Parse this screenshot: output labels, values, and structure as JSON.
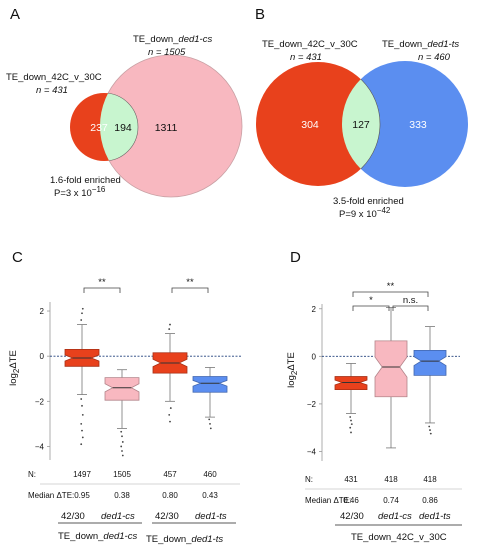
{
  "panels": {
    "A": {
      "label": "A",
      "left_set": {
        "name_prefix": "TE_down_42C_v_30C",
        "name_italic": "",
        "n_text": "n = 431",
        "n": 431,
        "only": 237
      },
      "right_set": {
        "name_prefix": "TE_down_",
        "name_italic": "ded1-cs",
        "n_text": "n = 1505",
        "n": 1505,
        "only": 1311
      },
      "overlap": 194,
      "enrichment": "1.6-fold enriched",
      "pvalue_base": "P=3 x 10",
      "pvalue_exp": "−16"
    },
    "B": {
      "label": "B",
      "left_set": {
        "name_prefix": "TE_down_42C_v_30C",
        "name_italic": "",
        "n_text": "n = 431",
        "n": 431,
        "only": 304
      },
      "right_set": {
        "name_prefix": "TE_down_",
        "name_italic": "ded1-ts",
        "n_text": "n = 460",
        "n": 460,
        "only": 333
      },
      "overlap": 127,
      "enrichment": "3.5-fold enriched",
      "pvalue_base": "P=9 x 10",
      "pvalue_exp": "−42"
    },
    "C": {
      "label": "C",
      "ylabel_main": "log",
      "ylabel_sub": "2",
      "ylabel_rest": "ΔTE",
      "n_label": "N:",
      "median_label": "Median ΔTE:",
      "sig_1": "**",
      "sig_2": "**",
      "group_labels": [
        {
          "top_a": "42/30",
          "top_b": "ded1-cs",
          "bottom_prefix": "TE_down_",
          "bottom_italic": "ded1-cs"
        },
        {
          "top_a": "42/30",
          "top_b": "ded1-ts",
          "bottom_prefix": "TE_down_",
          "bottom_italic": "ded1-ts"
        }
      ]
    },
    "D": {
      "label": "D",
      "ylabel_main": "log",
      "ylabel_sub": "2",
      "ylabel_rest": "ΔTE",
      "n_label": "N:",
      "median_label": "Median ΔTE:",
      "sig_outer": "**",
      "sig_left": "*",
      "sig_right": "n.s.",
      "group_top": [
        "42/30",
        "ded1-cs",
        "ded1-ts"
      ],
      "group_bottom": "TE_down_42C_v_30C"
    }
  },
  "chart_data": [
    {
      "type": "venn",
      "panel": "A",
      "sets": [
        {
          "name": "TE_down_42C_v_30C",
          "size": 431,
          "color": "#e8411c"
        },
        {
          "name": "TE_down_ded1-cs",
          "size": 1505,
          "color": "#f8b8c0"
        }
      ],
      "regions": {
        "left_only": 237,
        "overlap": 194,
        "right_only": 1311
      },
      "overlap_color": "#c8f5cf",
      "annotation": [
        "1.6-fold enriched",
        "P=3 x 10^-16"
      ]
    },
    {
      "type": "venn",
      "panel": "B",
      "sets": [
        {
          "name": "TE_down_42C_v_30C",
          "size": 431,
          "color": "#e8411c"
        },
        {
          "name": "TE_down_ded1-ts",
          "size": 460,
          "color": "#5b8ef0"
        }
      ],
      "regions": {
        "left_only": 304,
        "overlap": 127,
        "right_only": 333
      },
      "overlap_color": "#c8f5cf",
      "annotation": [
        "3.5-fold enriched",
        "P=9 x 10^-42"
      ]
    },
    {
      "type": "boxplot",
      "panel": "C",
      "ylabel": "log2ΔTE",
      "ylim": [
        -4.6,
        2.4
      ],
      "yticks": [
        -4,
        -2,
        0,
        2
      ],
      "reference_line": 0,
      "boxes": [
        {
          "category": "42/30",
          "group": "TE_down_ded1-cs",
          "color": "#e8411c",
          "n": 1497,
          "n_label": "1497",
          "median_label": "0.95",
          "q1": -0.45,
          "median": -0.08,
          "q3": 0.3,
          "whisker_low": -1.7,
          "whisker_high": 1.4,
          "outliers": [
            1.6,
            1.9,
            2.1,
            -1.9,
            -2.2,
            -2.6,
            -3.0,
            -3.3,
            -3.6,
            -3.9
          ]
        },
        {
          "category": "ded1-cs",
          "group": "TE_down_ded1-cs",
          "color": "#f8b8c0",
          "n": 1505,
          "n_label": "1505",
          "median_label": "0.38",
          "q1": -1.95,
          "median": -1.4,
          "q3": -0.95,
          "whisker_low": -3.2,
          "whisker_high": -0.6,
          "outliers": [
            -3.35,
            -3.55,
            -3.8,
            -4.0,
            -4.2,
            -4.4
          ]
        },
        {
          "category": "42/30",
          "group": "TE_down_ded1-ts",
          "color": "#e8411c",
          "n": 457,
          "n_label": "457",
          "median_label": "0.80",
          "q1": -0.75,
          "median": -0.3,
          "q3": 0.15,
          "whisker_low": -2.0,
          "whisker_high": 1.0,
          "outliers": [
            1.2,
            1.4,
            -2.3,
            -2.6,
            -2.9
          ]
        },
        {
          "category": "ded1-ts",
          "group": "TE_down_ded1-ts",
          "color": "#5b8ef0",
          "n": 460,
          "n_label": "460",
          "median_label": "0.43",
          "q1": -1.6,
          "median": -1.2,
          "q3": -0.9,
          "whisker_low": -2.7,
          "whisker_high": -0.5,
          "outliers": [
            -2.8,
            -3.0,
            -3.2
          ]
        }
      ],
      "significance": [
        {
          "from": 0,
          "to": 1,
          "label": "**"
        },
        {
          "from": 2,
          "to": 3,
          "label": "**"
        }
      ]
    },
    {
      "type": "boxplot",
      "panel": "D",
      "ylabel": "log2ΔTE",
      "ylim": [
        -4.4,
        2.2
      ],
      "yticks": [
        -4,
        -2,
        0,
        2
      ],
      "reference_line": 0,
      "boxes": [
        {
          "category": "42/30",
          "color": "#e8411c",
          "n": 431,
          "n_label": "431",
          "median_label": "0.46",
          "q1": -1.4,
          "median": -1.1,
          "q3": -0.85,
          "whisker_low": -2.4,
          "whisker_high": -0.3,
          "outliers": [
            -2.55,
            -2.7,
            -2.85,
            -3.0,
            -3.2
          ]
        },
        {
          "category": "ded1-cs",
          "color": "#f8b8c0",
          "n": 418,
          "n_label": "418",
          "median_label": "0.74",
          "q1": -1.7,
          "median": -0.45,
          "q3": 0.65,
          "whisker_low": -3.85,
          "whisker_high": 2.05,
          "outliers": []
        },
        {
          "category": "ded1-ts",
          "color": "#5b8ef0",
          "n": 418,
          "n_label": "418",
          "median_label": "0.86",
          "q1": -0.8,
          "median": -0.2,
          "q3": 0.25,
          "whisker_low": -2.8,
          "whisker_high": 1.25,
          "outliers": [
            -2.95,
            -3.1,
            -3.25
          ]
        }
      ],
      "significance": [
        {
          "from": 0,
          "to": 2,
          "label": "**"
        },
        {
          "from": 0,
          "to": 1,
          "label": "*"
        },
        {
          "from": 1,
          "to": 2,
          "label": "n.s."
        }
      ]
    }
  ]
}
